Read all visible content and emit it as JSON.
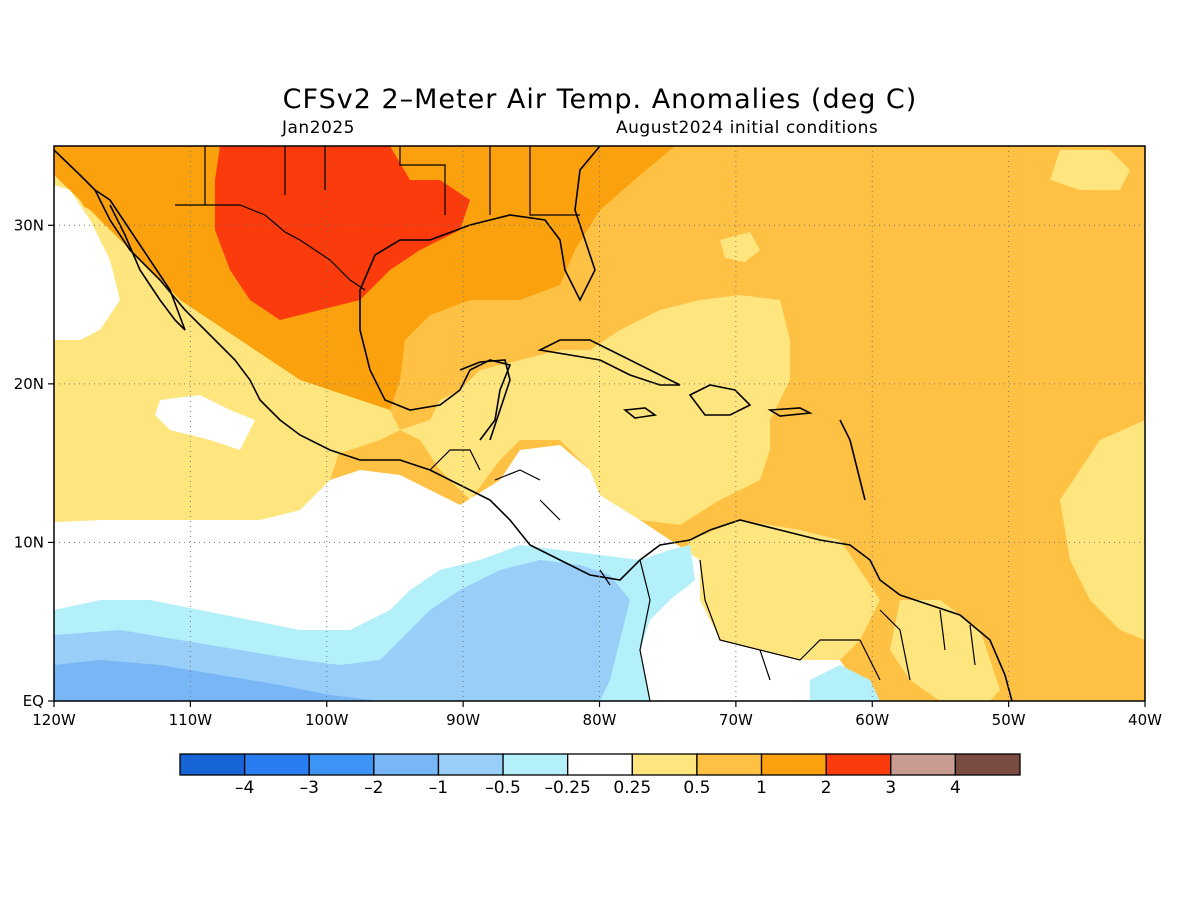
{
  "title": "CFSv2 2–Meter Air Temp. Anomalies (deg C)",
  "subtitle_left": "Jan2025",
  "subtitle_right": "August2024 initial conditions",
  "map": {
    "lon_range": [
      -120,
      -40
    ],
    "lat_range": [
      0,
      35
    ],
    "x_ticks": [
      {
        "lon": -120,
        "label": "120W"
      },
      {
        "lon": -110,
        "label": "110W"
      },
      {
        "lon": -100,
        "label": "100W"
      },
      {
        "lon": -90,
        "label": "90W"
      },
      {
        "lon": -80,
        "label": "80W"
      },
      {
        "lon": -70,
        "label": "70W"
      },
      {
        "lon": -60,
        "label": "60W"
      },
      {
        "lon": -50,
        "label": "50W"
      },
      {
        "lon": -40,
        "label": "40W"
      }
    ],
    "y_ticks": [
      {
        "lat": 0,
        "label": "EQ"
      },
      {
        "lat": 10,
        "label": "10N"
      },
      {
        "lat": 20,
        "label": "20N"
      },
      {
        "lat": 30,
        "label": "30N"
      }
    ],
    "grid": "dotted"
  },
  "colorbar": {
    "colors": [
      "#1764d6",
      "#2a7df0",
      "#3c95f5",
      "#78b6f5",
      "#98cef8",
      "#b4f0fa",
      "#ffffff",
      "#fee57e",
      "#fec144",
      "#fba10e",
      "#fb3b0b",
      "#c99c91",
      "#7a4b40"
    ],
    "labels": [
      "–4",
      "–3",
      "–2",
      "–1",
      "–0.5",
      "–0.25",
      "0.25",
      "0.5",
      "1",
      "2",
      "3",
      "4"
    ]
  },
  "colors": {
    "neg3": "#78b6f5",
    "neg2": "#98cef8",
    "neg1": "#b4f0fa",
    "neutral": "#ffffff",
    "pos1": "#fee57e",
    "pos2": "#fec144",
    "pos3": "#fba10e",
    "pos4": "#fb3b0b"
  }
}
